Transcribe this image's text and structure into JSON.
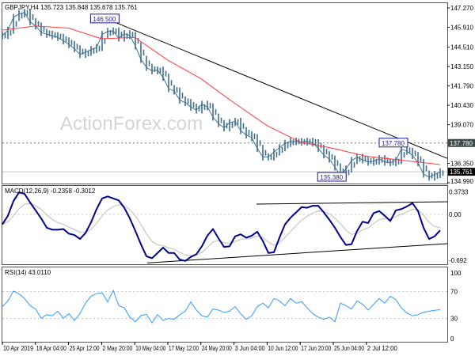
{
  "chart_data": [
    {
      "panel": "price",
      "type": "bar",
      "header": "GBPJPY,H4  135.723 135.848 135.678 135.761",
      "symbol": "GBPJPY",
      "timeframe": "H4",
      "ohlc_last": {
        "open": 135.723,
        "high": 135.848,
        "low": 135.678,
        "close": 135.761
      },
      "watermark": "ActionForex.com",
      "x_ticks": [
        "10 Apr 2019",
        "18 Apr 04:00",
        "25 Apr 12:00",
        "2 May 20:00",
        "10 May 04:00",
        "17 May 12:00",
        "24 May 20:00",
        "3 Jun 04:00",
        "10 Jun 12:00",
        "17 Jun 20:00",
        "25 Jun 04:00",
        "2 Jul 12:00"
      ],
      "y_ticks": [
        147.27,
        145.91,
        144.51,
        143.15,
        141.79,
        140.43,
        139.07,
        136.35,
        134.99
      ],
      "y_tick_labels": [
        "147.270",
        "145.910",
        "144.510",
        "143.150",
        "141.790",
        "140.430",
        "139.070",
        "136.350",
        "134.990"
      ],
      "ylim": [
        134.99,
        147.27
      ],
      "closes": [
        145.33,
        145.7,
        146.6,
        146.85,
        146.95,
        146.3,
        146.0,
        145.55,
        145.42,
        145.32,
        145.2,
        144.95,
        144.7,
        144.4,
        144.0,
        144.15,
        144.35,
        144.49,
        145.4,
        145.62,
        145.65,
        145.15,
        145.45,
        145.33,
        144.6,
        143.66,
        143.1,
        142.85,
        142.9,
        142.4,
        141.6,
        141.43,
        140.8,
        140.62,
        140.3,
        140.1,
        140.5,
        140.32,
        139.6,
        139.15,
        138.85,
        139.21,
        139.3,
        138.65,
        138.35,
        138.15,
        137.4,
        136.8,
        136.8,
        137.15,
        137.45,
        137.75,
        137.9,
        137.88,
        137.85,
        137.9,
        137.8,
        137.4,
        136.95,
        136.65,
        136.1,
        135.49,
        135.95,
        136.55,
        136.78,
        136.6,
        136.44,
        136.5,
        136.68,
        136.44,
        136.4,
        136.55,
        137.35,
        137.2,
        136.9,
        136.4,
        135.6,
        135.38,
        135.57,
        135.76
      ],
      "moving_average": {
        "color": "#ff3a3a",
        "values": [
          145.71,
          146.0,
          145.85,
          145.1,
          145.2,
          143.6,
          142.3,
          140.6,
          139.0,
          137.85,
          137.4,
          136.85,
          136.27
        ]
      },
      "trendline": {
        "from_tick": "2 May 20:00",
        "from_value": 146.6,
        "to_value": 136.7,
        "color": "#000000"
      },
      "levels": {
        "resistance": {
          "value": 137.78,
          "label": "137.780"
        },
        "current": {
          "value": 135.761,
          "label": "135.761"
        }
      },
      "annotations": [
        {
          "text": "146.500",
          "value": 146.5,
          "at_tick": "2 May 20:00"
        },
        {
          "text": "137.780",
          "value": 137.78,
          "at_tick": "25 Jun 04:00"
        },
        {
          "text": "135.380",
          "value": 135.38,
          "at_tick": "17 Jun 20:00"
        }
      ],
      "colors": {
        "bars": "#3f6f8e",
        "annotation": "#1a1aa0"
      }
    },
    {
      "panel": "macd",
      "type": "line",
      "header": "MACD(12,26,9) -0.2358 -0.3012",
      "y_tick_labels": [
        "0.3733",
        "0.00",
        "-0.692"
      ],
      "y_ticks": [
        0.3733,
        0.0,
        -0.692
      ],
      "values": [
        -0.15,
        -0.02,
        0.2,
        0.33,
        0.31,
        0.18,
        0.06,
        -0.06,
        -0.2,
        -0.23,
        -0.23,
        -0.22,
        -0.29,
        -0.31,
        -0.37,
        -0.28,
        -0.12,
        0.08,
        0.24,
        0.27,
        0.24,
        0.21,
        0.1,
        -0.06,
        -0.25,
        -0.45,
        -0.63,
        -0.66,
        -0.58,
        -0.5,
        -0.58,
        -0.58,
        -0.68,
        -0.7,
        -0.64,
        -0.6,
        -0.48,
        -0.32,
        -0.22,
        -0.36,
        -0.49,
        -0.48,
        -0.33,
        -0.3,
        -0.35,
        -0.32,
        -0.26,
        -0.4,
        -0.58,
        -0.57,
        -0.35,
        -0.15,
        -0.05,
        0.03,
        0.11,
        0.1,
        0.13,
        0.13,
        0.03,
        -0.08,
        -0.2,
        -0.34,
        -0.46,
        -0.45,
        -0.25,
        -0.11,
        -0.13,
        0.02,
        0.05,
        -0.02,
        -0.1,
        0.06,
        0.08,
        0.12,
        0.17,
        0.05,
        -0.2,
        -0.37,
        -0.33,
        -0.24
      ],
      "upper_trendline": {
        "from_value": 0.155,
        "to_value": 0.19
      },
      "lower_trendline": {
        "from_value": -0.73,
        "to_value": -0.44
      },
      "colors": {
        "macd": "#000090",
        "signal": "#bdbdbd"
      }
    },
    {
      "panel": "rsi",
      "type": "line",
      "header": "RSI(14) 43.0110",
      "y_tick_labels": [
        "100",
        "70",
        "30",
        "0"
      ],
      "y_ticks": [
        100,
        70,
        30,
        0
      ],
      "values": [
        47.6,
        56,
        70.7,
        66.5,
        59.6,
        49,
        44,
        30.3,
        35.5,
        34,
        40.7,
        30.3,
        37,
        27,
        37,
        52.7,
        63,
        67,
        68,
        54.5,
        71.7,
        49,
        45.8,
        32,
        25,
        34,
        36,
        23.4,
        35.5,
        27,
        30,
        28.6,
        35.5,
        40.7,
        54.5,
        42.4,
        33.8,
        32,
        44,
        42.4,
        39,
        40.7,
        47.6,
        37,
        28.6,
        33.8,
        47.6,
        52.7,
        45.8,
        59.6,
        56,
        49,
        59.6,
        52.7,
        55,
        45.8,
        37,
        32,
        28.6,
        32,
        25,
        52.7,
        49,
        44,
        56,
        51,
        42.4,
        51,
        59.6,
        52.7,
        63,
        58,
        45.8,
        38,
        33.8,
        35.5,
        39,
        40.7,
        42,
        43.0
      ],
      "colors": {
        "rsi": "#3399ff"
      }
    }
  ]
}
